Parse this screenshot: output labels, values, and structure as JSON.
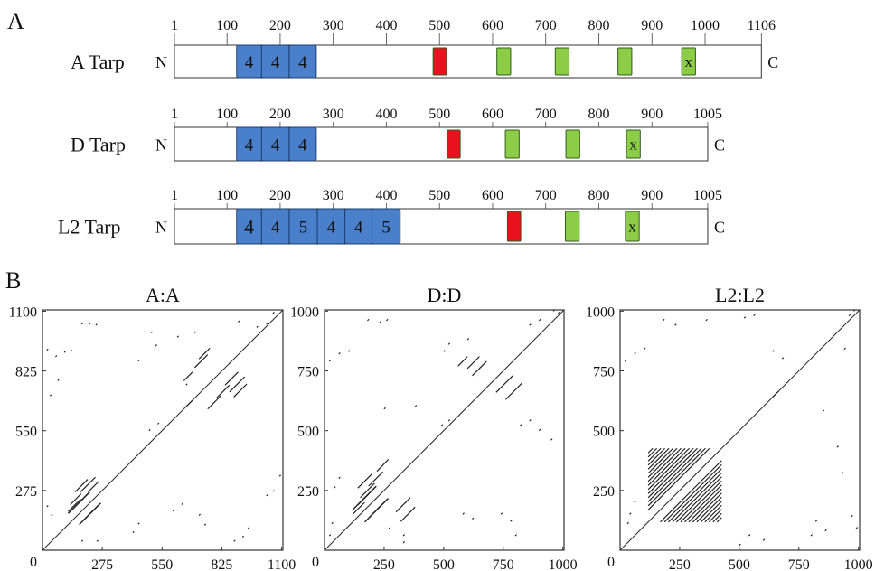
{
  "panel_a": {
    "label": "A",
    "proteins": [
      {
        "name": "A Tarp",
        "length": 1106,
        "n_label": "N",
        "c_label": "C",
        "ticks": [
          "1",
          "100",
          "200",
          "300",
          "400",
          "500",
          "600",
          "700",
          "800",
          "900",
          "1000",
          "1106"
        ],
        "tick_values": [
          1,
          100,
          200,
          300,
          400,
          500,
          600,
          700,
          800,
          900,
          1000,
          1106
        ],
        "domains": [
          {
            "type": "repeat",
            "start": 118,
            "end": 165,
            "label": "4"
          },
          {
            "type": "repeat",
            "start": 165,
            "end": 217,
            "label": "4"
          },
          {
            "type": "repeat",
            "start": 217,
            "end": 268,
            "label": "4"
          },
          {
            "type": "red",
            "start": 488,
            "end": 513,
            "label": ""
          },
          {
            "type": "green",
            "start": 608,
            "end": 634,
            "label": ""
          },
          {
            "type": "green",
            "start": 718,
            "end": 744,
            "label": ""
          },
          {
            "type": "green",
            "start": 836,
            "end": 862,
            "label": ""
          },
          {
            "type": "green",
            "start": 956,
            "end": 982,
            "label": "x"
          }
        ]
      },
      {
        "name": "D Tarp",
        "length": 1005,
        "n_label": "N",
        "c_label": "C",
        "ticks": [
          "1",
          "100",
          "200",
          "300",
          "400",
          "500",
          "600",
          "700",
          "800",
          "900",
          "1005"
        ],
        "tick_values": [
          1,
          100,
          200,
          300,
          400,
          500,
          600,
          700,
          800,
          900,
          1005
        ],
        "domains": [
          {
            "type": "repeat",
            "start": 118,
            "end": 165,
            "label": "4"
          },
          {
            "type": "repeat",
            "start": 165,
            "end": 217,
            "label": "4"
          },
          {
            "type": "repeat",
            "start": 217,
            "end": 268,
            "label": "4"
          },
          {
            "type": "red",
            "start": 514,
            "end": 539,
            "label": ""
          },
          {
            "type": "green",
            "start": 624,
            "end": 650,
            "label": ""
          },
          {
            "type": "green",
            "start": 738,
            "end": 764,
            "label": ""
          },
          {
            "type": "green",
            "start": 852,
            "end": 878,
            "label": "x"
          }
        ]
      },
      {
        "name": "L2 Tarp",
        "length": 1005,
        "n_label": "N",
        "c_label": "C",
        "ticks": [
          "1",
          "100",
          "200",
          "300",
          "400",
          "500",
          "600",
          "700",
          "800",
          "900",
          "1005"
        ],
        "tick_values": [
          1,
          100,
          200,
          300,
          400,
          500,
          600,
          700,
          800,
          900,
          1005
        ],
        "domains": [
          {
            "type": "repeat",
            "start": 118,
            "end": 165,
            "label": "4"
          },
          {
            "type": "repeat",
            "start": 165,
            "end": 217,
            "label": "4"
          },
          {
            "type": "repeat",
            "start": 217,
            "end": 270,
            "label": "5"
          },
          {
            "type": "repeat",
            "start": 270,
            "end": 322,
            "label": "4"
          },
          {
            "type": "repeat",
            "start": 322,
            "end": 373,
            "label": "4"
          },
          {
            "type": "repeat",
            "start": 373,
            "end": 426,
            "label": "5"
          },
          {
            "type": "red",
            "start": 628,
            "end": 653,
            "label": ""
          },
          {
            "type": "green",
            "start": 737,
            "end": 763,
            "label": ""
          },
          {
            "type": "green",
            "start": 850,
            "end": 876,
            "label": "x"
          }
        ]
      }
    ],
    "colors": {
      "repeat": "#4a7fcb",
      "red": "#e8121e",
      "green": "#8ccc46",
      "outline": "#333333"
    }
  },
  "panel_b": {
    "label": "B",
    "plots": [
      {
        "title": "A:A",
        "length": 1106,
        "axis_max": 1106,
        "ticks": [
          0,
          275,
          550,
          825,
          1100
        ],
        "tick_labels": [
          "0",
          "275",
          "550",
          "825",
          "1100"
        ],
        "repeat_band": [
          118,
          268
        ],
        "segments": [
          [
            150,
            268,
            208,
            326
          ],
          [
            175,
            268,
            243,
            336
          ],
          [
            210,
            268,
            258,
            316
          ],
          [
            118,
            178,
            176,
            236
          ],
          [
            128,
            210,
            178,
            260
          ],
          [
            840,
            760,
            900,
            820
          ],
          [
            860,
            728,
            930,
            798
          ],
          [
            720,
            880,
            770,
            930
          ],
          [
            700,
            840,
            760,
            900
          ],
          [
            650,
            780,
            690,
            820
          ],
          [
            760,
            650,
            820,
            710
          ],
          [
            800,
            700,
            860,
            760
          ],
          [
            880,
            705,
            940,
            765
          ],
          [
            660,
            660,
            690,
            690
          ]
        ],
        "dots": [
          [
            180,
            1040
          ],
          [
            215,
            1040
          ],
          [
            245,
            1035
          ],
          [
            100,
            910
          ],
          [
            130,
            915
          ],
          [
            60,
            890
          ],
          [
            20,
            920
          ],
          [
            35,
            710
          ],
          [
            70,
            780
          ],
          [
            440,
            870
          ],
          [
            520,
            940
          ],
          [
            620,
            980
          ],
          [
            660,
            760
          ],
          [
            900,
            1050
          ],
          [
            985,
            1025
          ],
          [
            1030,
            1040
          ],
          [
            1060,
            1090
          ],
          [
            600,
            180
          ],
          [
            640,
            210
          ],
          [
            720,
            160
          ],
          [
            745,
            115
          ],
          [
            880,
            40
          ],
          [
            920,
            60
          ],
          [
            945,
            100
          ],
          [
            1030,
            250
          ],
          [
            1060,
            270
          ],
          [
            1090,
            340
          ],
          [
            415,
            80
          ],
          [
            440,
            120
          ],
          [
            250,
            40
          ],
          [
            180,
            40
          ],
          [
            40,
            160
          ],
          [
            20,
            200
          ],
          [
            490,
            550
          ],
          [
            530,
            580
          ],
          [
            500,
            1000
          ],
          [
            700,
            1000
          ],
          [
            860,
            860
          ]
        ]
      },
      {
        "title": "D:D",
        "length": 1005,
        "axis_max": 1005,
        "ticks": [
          0,
          250,
          500,
          750,
          1000
        ],
        "tick_labels": [
          "0",
          "250",
          "500",
          "750",
          "1000"
        ],
        "repeat_band": [
          118,
          268
        ],
        "segments": [
          [
            140,
            260,
            200,
            320
          ],
          [
            150,
            220,
            210,
            280
          ],
          [
            185,
            268,
            245,
            328
          ],
          [
            118,
            150,
            168,
            200
          ],
          [
            220,
            330,
            268,
            380
          ],
          [
            300,
            160,
            360,
            220
          ],
          [
            320,
            120,
            380,
            180
          ],
          [
            720,
            660,
            790,
            730
          ],
          [
            760,
            630,
            830,
            700
          ],
          [
            620,
            730,
            680,
            790
          ],
          [
            600,
            760,
            650,
            810
          ],
          [
            560,
            770,
            600,
            810
          ]
        ],
        "dots": [
          [
            180,
            960
          ],
          [
            230,
            950
          ],
          [
            260,
            960
          ],
          [
            60,
            820
          ],
          [
            100,
            830
          ],
          [
            20,
            790
          ],
          [
            500,
            830
          ],
          [
            520,
            860
          ],
          [
            600,
            880
          ],
          [
            860,
            940
          ],
          [
            900,
            960
          ],
          [
            960,
            1000
          ],
          [
            980,
            990
          ],
          [
            820,
            520
          ],
          [
            860,
            540
          ],
          [
            740,
            150
          ],
          [
            780,
            120
          ],
          [
            800,
            60
          ],
          [
            580,
            150
          ],
          [
            620,
            130
          ],
          [
            60,
            300
          ],
          [
            40,
            260
          ],
          [
            30,
            110
          ],
          [
            20,
            60
          ],
          [
            330,
            60
          ],
          [
            270,
            90
          ],
          [
            380,
            600
          ],
          [
            490,
            520
          ],
          [
            520,
            540
          ],
          [
            250,
            590
          ],
          [
            330,
            30
          ],
          [
            900,
            500
          ],
          [
            950,
            460
          ]
        ]
      },
      {
        "title": "L2:L2",
        "length": 1005,
        "axis_max": 1005,
        "ticks": [
          0,
          250,
          500,
          750,
          1000
        ],
        "tick_labels": [
          "0",
          "250",
          "500",
          "750",
          "1000"
        ],
        "repeat_band": [
          118,
          426
        ],
        "segments": [
          [
            640,
            640,
            665,
            665
          ]
        ],
        "dots": [
          [
            180,
            960
          ],
          [
            230,
            940
          ],
          [
            360,
            960
          ],
          [
            520,
            970
          ],
          [
            560,
            980
          ],
          [
            60,
            820
          ],
          [
            100,
            840
          ],
          [
            20,
            790
          ],
          [
            640,
            830
          ],
          [
            680,
            800
          ],
          [
            940,
            840
          ],
          [
            980,
            1000
          ],
          [
            960,
            980
          ],
          [
            910,
            430
          ],
          [
            930,
            320
          ],
          [
            820,
            120
          ],
          [
            860,
            80
          ],
          [
            800,
            60
          ],
          [
            60,
            200
          ],
          [
            40,
            150
          ],
          [
            30,
            110
          ],
          [
            970,
            140
          ],
          [
            990,
            90
          ],
          [
            540,
            60
          ],
          [
            600,
            40
          ],
          [
            500,
            20
          ],
          [
            850,
            580
          ]
        ]
      }
    ]
  }
}
